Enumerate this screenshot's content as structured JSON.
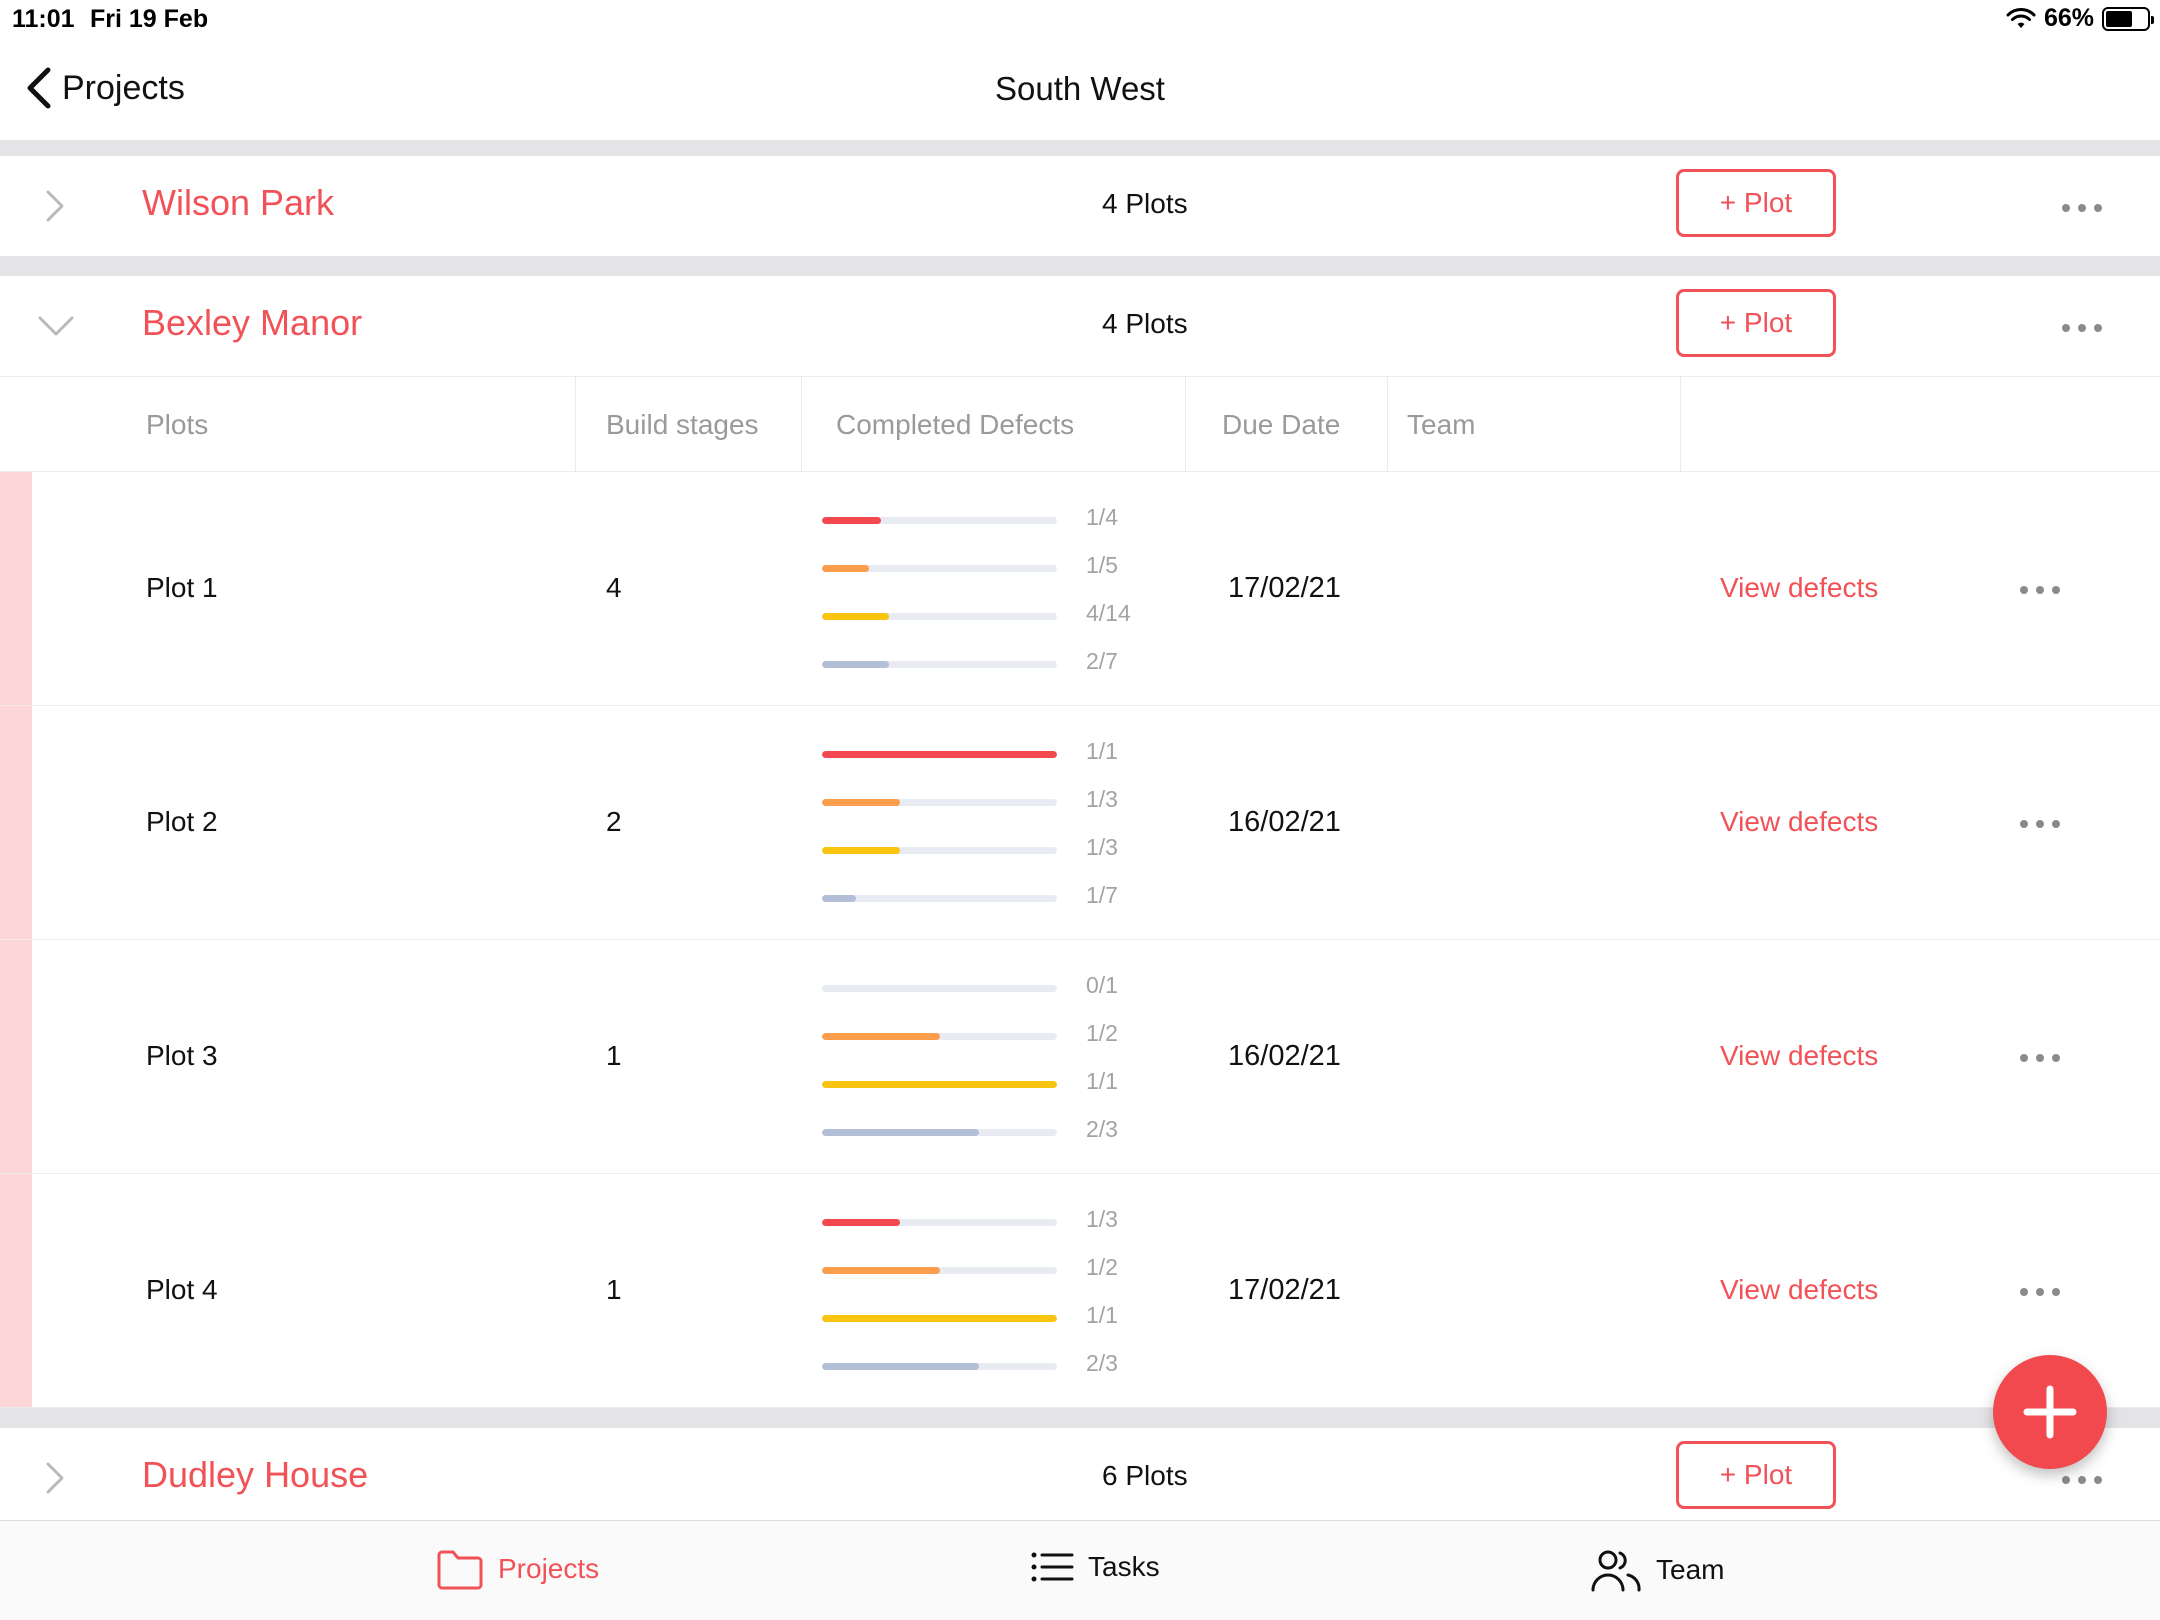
{
  "status_bar": {
    "time": "11:01",
    "date": "Fri 19 Feb",
    "battery": "66%",
    "battery_level": 0.66
  },
  "nav": {
    "back_label": "Projects",
    "title": "South West"
  },
  "projects": [
    {
      "name": "Wilson Park",
      "plots": "4 Plots",
      "add_label": "+ Plot",
      "expanded": false
    },
    {
      "name": "Bexley Manor",
      "plots": "4 Plots",
      "add_label": "+ Plot",
      "expanded": true
    },
    {
      "name": "Dudley House",
      "plots": "6 Plots",
      "add_label": "+ Plot",
      "expanded": false
    }
  ],
  "table": {
    "headers": {
      "plots": "Plots",
      "build_stages": "Build stages",
      "completed_defects": "Completed Defects",
      "due_date": "Due Date",
      "team": "Team"
    },
    "bar_colors": [
      "#f3484d",
      "#fb9d4a",
      "#f9c40e",
      "#b3bfd6"
    ],
    "rows": [
      {
        "name": "Plot 1",
        "stages": "4",
        "due": "17/02/21",
        "team": "",
        "action": "View defects",
        "defects": [
          {
            "label": "1/4",
            "done": 1,
            "total": 4
          },
          {
            "label": "1/5",
            "done": 1,
            "total": 5
          },
          {
            "label": "4/14",
            "done": 4,
            "total": 14
          },
          {
            "label": "2/7",
            "done": 2,
            "total": 7
          }
        ]
      },
      {
        "name": "Plot 2",
        "stages": "2",
        "due": "16/02/21",
        "team": "",
        "action": "View defects",
        "defects": [
          {
            "label": "1/1",
            "done": 1,
            "total": 1
          },
          {
            "label": "1/3",
            "done": 1,
            "total": 3
          },
          {
            "label": "1/3",
            "done": 1,
            "total": 3
          },
          {
            "label": "1/7",
            "done": 1,
            "total": 7
          }
        ]
      },
      {
        "name": "Plot 3",
        "stages": "1",
        "due": "16/02/21",
        "team": "",
        "action": "View defects",
        "defects": [
          {
            "label": "0/1",
            "done": 0,
            "total": 1
          },
          {
            "label": "1/2",
            "done": 1,
            "total": 2
          },
          {
            "label": "1/1",
            "done": 1,
            "total": 1
          },
          {
            "label": "2/3",
            "done": 2,
            "total": 3
          }
        ]
      },
      {
        "name": "Plot 4",
        "stages": "1",
        "due": "17/02/21",
        "team": "",
        "action": "View defects",
        "defects": [
          {
            "label": "1/3",
            "done": 1,
            "total": 3
          },
          {
            "label": "1/2",
            "done": 1,
            "total": 2
          },
          {
            "label": "1/1",
            "done": 1,
            "total": 1
          },
          {
            "label": "2/3",
            "done": 2,
            "total": 3
          }
        ]
      }
    ]
  },
  "tabbar": {
    "items": [
      {
        "label": "Projects",
        "icon": "folder-icon",
        "active": true
      },
      {
        "label": "Tasks",
        "icon": "list-icon",
        "active": false
      },
      {
        "label": "Team",
        "icon": "people-icon",
        "active": false
      }
    ]
  },
  "fab": {
    "icon": "plus-icon"
  },
  "colors": {
    "accent": "#f05257",
    "row_marker": "#fdd6d8",
    "separator": "#e4e4e6"
  }
}
